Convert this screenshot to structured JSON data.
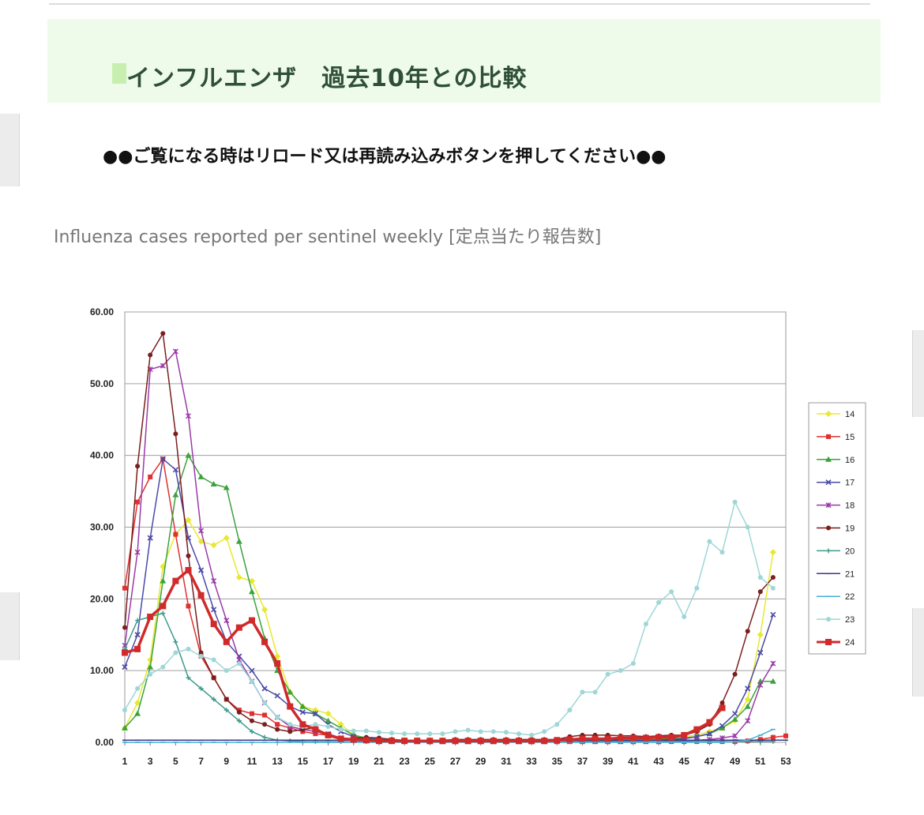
{
  "section": {
    "title": "インフルエンザ　過去10年との比較"
  },
  "notice": "●●ご覧になる時はリロード又は再読み込みボタンを押してください●●",
  "chart_caption": "Influenza cases reported per sentinel weekly [定点当たり報告数]",
  "chart_data": {
    "type": "line",
    "title": "",
    "xlabel": "",
    "ylabel": "",
    "ylim": [
      0,
      60
    ],
    "yticks": [
      "0.00",
      "10.00",
      "20.00",
      "30.00",
      "40.00",
      "50.00",
      "60.00"
    ],
    "xlim": [
      1,
      53
    ],
    "xticks": [
      1,
      3,
      5,
      7,
      9,
      11,
      13,
      15,
      17,
      19,
      21,
      23,
      25,
      27,
      29,
      31,
      33,
      35,
      37,
      39,
      41,
      43,
      45,
      47,
      49,
      51,
      53
    ],
    "grid": "horizontal",
    "legend": "right",
    "series": [
      {
        "name": "14",
        "color": "#e8e832",
        "marker": "diamond",
        "x": [
          1,
          2,
          3,
          4,
          5,
          6,
          7,
          8,
          9,
          10,
          11,
          12,
          13,
          14,
          15,
          16,
          17,
          18,
          19,
          20,
          21,
          22,
          23,
          24,
          25,
          26,
          27,
          28,
          29,
          30,
          31,
          32,
          33,
          34,
          35,
          36,
          37,
          38,
          39,
          40,
          41,
          42,
          43,
          44,
          45,
          46,
          47,
          48,
          49,
          50,
          51,
          52
        ],
        "values": [
          2.0,
          5.5,
          11.5,
          24.5,
          29.0,
          31.0,
          28.0,
          27.5,
          28.5,
          23.0,
          22.5,
          18.5,
          12.0,
          7.0,
          5.0,
          4.5,
          4.0,
          2.5,
          1.0,
          0.6,
          0.5,
          0.4,
          0.3,
          0.3,
          0.3,
          0.3,
          0.3,
          0.3,
          0.3,
          0.3,
          0.3,
          0.3,
          0.3,
          0.3,
          0.3,
          0.3,
          0.3,
          0.3,
          0.3,
          0.3,
          0.4,
          0.4,
          0.5,
          0.6,
          0.8,
          1.0,
          1.5,
          2.0,
          3.0,
          6.0,
          15.0,
          26.5
        ]
      },
      {
        "name": "15",
        "color": "#e03030",
        "marker": "square",
        "x": [
          1,
          2,
          3,
          4,
          5,
          6,
          7,
          8,
          9,
          10,
          11,
          12,
          13,
          14,
          15,
          16,
          17,
          18,
          19,
          20,
          21,
          22,
          23,
          24,
          25,
          26,
          27,
          28,
          29,
          30,
          31,
          32,
          33,
          34,
          35,
          36,
          37,
          38,
          39,
          40,
          41,
          42,
          43,
          44,
          45,
          46,
          47,
          48,
          49,
          50,
          51,
          52,
          53
        ],
        "values": [
          21.5,
          33.5,
          37.0,
          39.5,
          29.0,
          19.0,
          12.0,
          9.0,
          6.0,
          4.5,
          4.0,
          3.8,
          2.5,
          2.0,
          1.5,
          1.2,
          1.0,
          0.6,
          0.4,
          0.3,
          0.2,
          0.2,
          0.2,
          0.1,
          0.1,
          0.1,
          0.1,
          0.1,
          0.1,
          0.1,
          0.1,
          0.1,
          0.1,
          0.1,
          0.1,
          0.1,
          0.1,
          0.1,
          0.1,
          0.1,
          0.1,
          0.1,
          0.1,
          0.1,
          0.1,
          0.1,
          0.1,
          0.1,
          0.1,
          0.2,
          0.4,
          0.7,
          0.9
        ]
      },
      {
        "name": "16",
        "color": "#3ca23c",
        "marker": "triangle",
        "x": [
          1,
          2,
          3,
          4,
          5,
          6,
          7,
          8,
          9,
          10,
          11,
          12,
          13,
          14,
          15,
          16,
          17,
          18,
          19,
          20,
          21,
          22,
          23,
          24,
          25,
          26,
          27,
          28,
          29,
          30,
          31,
          32,
          33,
          34,
          35,
          36,
          37,
          38,
          39,
          40,
          41,
          42,
          43,
          44,
          45,
          46,
          47,
          48,
          49,
          50,
          51,
          52
        ],
        "values": [
          2.0,
          4.0,
          10.5,
          22.5,
          34.5,
          40.0,
          37.0,
          36.0,
          35.5,
          28.0,
          21.0,
          14.5,
          10.0,
          7.0,
          5.0,
          4.0,
          3.0,
          2.0,
          1.0,
          0.6,
          0.4,
          0.3,
          0.3,
          0.3,
          0.2,
          0.2,
          0.2,
          0.2,
          0.2,
          0.2,
          0.2,
          0.2,
          0.2,
          0.2,
          0.2,
          0.2,
          0.2,
          0.2,
          0.2,
          0.2,
          0.3,
          0.3,
          0.4,
          0.5,
          0.6,
          0.8,
          1.2,
          2.0,
          3.2,
          5.0,
          8.5,
          8.5
        ]
      },
      {
        "name": "17",
        "color": "#4a4aa8",
        "marker": "x",
        "x": [
          1,
          2,
          3,
          4,
          5,
          6,
          7,
          8,
          9,
          10,
          11,
          12,
          13,
          14,
          15,
          16,
          17,
          18,
          19,
          20,
          21,
          22,
          23,
          24,
          25,
          26,
          27,
          28,
          29,
          30,
          31,
          32,
          33,
          34,
          35,
          36,
          37,
          38,
          39,
          40,
          41,
          42,
          43,
          44,
          45,
          46,
          47,
          48,
          49,
          50,
          51,
          52
        ],
        "values": [
          10.5,
          15.0,
          28.5,
          39.5,
          38.0,
          28.5,
          24.0,
          18.5,
          14.0,
          12.0,
          10.0,
          7.5,
          6.5,
          5.0,
          4.2,
          4.0,
          2.5,
          1.5,
          0.8,
          0.5,
          0.4,
          0.3,
          0.3,
          0.3,
          0.2,
          0.2,
          0.2,
          0.2,
          0.2,
          0.2,
          0.2,
          0.2,
          0.2,
          0.2,
          0.2,
          0.2,
          0.2,
          0.2,
          0.2,
          0.2,
          0.2,
          0.3,
          0.3,
          0.4,
          0.5,
          0.8,
          1.2,
          2.3,
          4.0,
          7.5,
          12.5,
          17.8
        ]
      },
      {
        "name": "18",
        "color": "#9a3aa8",
        "marker": "star",
        "x": [
          1,
          2,
          3,
          4,
          5,
          6,
          7,
          8,
          9,
          10,
          11,
          12,
          13,
          14,
          15,
          16,
          17,
          18,
          19,
          20,
          21,
          22,
          23,
          24,
          25,
          26,
          27,
          28,
          29,
          30,
          31,
          32,
          33,
          34,
          35,
          36,
          37,
          38,
          39,
          40,
          41,
          42,
          43,
          44,
          45,
          46,
          47,
          48,
          49,
          50,
          51,
          52
        ],
        "values": [
          13.5,
          26.5,
          52.0,
          52.5,
          54.5,
          45.5,
          29.5,
          22.5,
          17.0,
          11.5,
          8.5,
          5.5,
          3.5,
          2.2,
          1.8,
          1.5,
          1.2,
          0.6,
          0.4,
          0.3,
          0.2,
          0.2,
          0.2,
          0.1,
          0.1,
          0.1,
          0.1,
          0.1,
          0.1,
          0.1,
          0.1,
          0.1,
          0.1,
          0.1,
          0.1,
          0.1,
          0.1,
          0.1,
          0.1,
          0.1,
          0.1,
          0.1,
          0.1,
          0.2,
          0.2,
          0.3,
          0.4,
          0.6,
          0.9,
          3.0,
          8.0,
          11.0
        ]
      },
      {
        "name": "19",
        "color": "#7a1e1e",
        "marker": "circle",
        "x": [
          1,
          2,
          3,
          4,
          5,
          6,
          7,
          8,
          9,
          10,
          11,
          12,
          13,
          14,
          15,
          16,
          17,
          18,
          19,
          20,
          21,
          22,
          23,
          24,
          25,
          26,
          27,
          28,
          29,
          30,
          31,
          32,
          33,
          34,
          35,
          36,
          37,
          38,
          39,
          40,
          41,
          42,
          43,
          44,
          45,
          46,
          47,
          48,
          49,
          50,
          51,
          52
        ],
        "values": [
          16.0,
          38.5,
          54.0,
          57.0,
          43.0,
          26.0,
          12.5,
          9.0,
          6.0,
          4.2,
          3.0,
          2.5,
          1.8,
          1.5,
          1.8,
          2.0,
          1.0,
          0.6,
          0.5,
          0.7,
          0.6,
          0.4,
          0.3,
          0.3,
          0.3,
          0.3,
          0.4,
          0.4,
          0.4,
          0.4,
          0.4,
          0.4,
          0.4,
          0.4,
          0.4,
          0.8,
          1.0,
          1.0,
          1.0,
          0.9,
          0.9,
          0.8,
          0.9,
          1.0,
          1.0,
          1.5,
          2.5,
          5.5,
          9.5,
          15.5,
          21.0,
          23.0
        ]
      },
      {
        "name": "20",
        "color": "#3e9a8a",
        "marker": "plus",
        "x": [
          1,
          2,
          3,
          4,
          5,
          6,
          7,
          8,
          9,
          10,
          11,
          12,
          13,
          14,
          15,
          16,
          17,
          18,
          19,
          20,
          21,
          22,
          23,
          24,
          25,
          26,
          27,
          28,
          29,
          30,
          31,
          32,
          33,
          34,
          35,
          36,
          37,
          38,
          39,
          40,
          41,
          42,
          43,
          44,
          45,
          46,
          47,
          48,
          49,
          50,
          51,
          52
        ],
        "values": [
          13.0,
          17.0,
          17.5,
          18.0,
          14.0,
          9.0,
          7.5,
          6.0,
          4.5,
          3.0,
          1.5,
          0.7,
          0.3,
          0.2,
          0.1,
          0.1,
          0.1,
          0.1,
          0.1,
          0.1,
          0.1,
          0.1,
          0.1,
          0.1,
          0.1,
          0.1,
          0.1,
          0.1,
          0.1,
          0.1,
          0.1,
          0.1,
          0.1,
          0.1,
          0.1,
          0.1,
          0.1,
          0.1,
          0.1,
          0.1,
          0.1,
          0.1,
          0.1,
          0.1,
          0.1,
          0.1,
          0.1,
          0.1,
          0.1,
          0.1,
          0.1,
          0.1
        ]
      },
      {
        "name": "21",
        "color": "#3a3a8a",
        "marker": "dash",
        "x": [
          1,
          2,
          3,
          4,
          5,
          6,
          7,
          8,
          9,
          10,
          11,
          12,
          13,
          14,
          15,
          16,
          17,
          18,
          19,
          20,
          21,
          22,
          23,
          24,
          25,
          26,
          27,
          28,
          29,
          30,
          31,
          32,
          33,
          34,
          35,
          36,
          37,
          38,
          39,
          40,
          41,
          42,
          43,
          44,
          45,
          46,
          47,
          48,
          49,
          50,
          51,
          52,
          53
        ],
        "values": [
          0.3,
          0.3,
          0.3,
          0.3,
          0.3,
          0.3,
          0.3,
          0.3,
          0.3,
          0.3,
          0.3,
          0.3,
          0.3,
          0.3,
          0.3,
          0.3,
          0.3,
          0.3,
          0.3,
          0.3,
          0.3,
          0.3,
          0.3,
          0.3,
          0.3,
          0.3,
          0.3,
          0.3,
          0.3,
          0.3,
          0.3,
          0.3,
          0.3,
          0.3,
          0.3,
          0.3,
          0.3,
          0.3,
          0.3,
          0.3,
          0.3,
          0.3,
          0.3,
          0.3,
          0.3,
          0.3,
          0.3,
          0.3,
          0.3,
          0.3,
          0.3,
          0.3,
          0.3
        ]
      },
      {
        "name": "22",
        "color": "#48b0d8",
        "marker": "dash",
        "x": [
          1,
          2,
          3,
          4,
          5,
          6,
          7,
          8,
          9,
          10,
          11,
          12,
          13,
          14,
          15,
          16,
          17,
          18,
          19,
          20,
          21,
          22,
          23,
          24,
          25,
          26,
          27,
          28,
          29,
          30,
          31,
          32,
          33,
          34,
          35,
          36,
          37,
          38,
          39,
          40,
          41,
          42,
          43,
          44,
          45,
          46,
          47,
          48,
          49,
          50,
          51,
          52
        ],
        "values": [
          0.0,
          0.0,
          0.0,
          0.0,
          0.0,
          0.0,
          0.0,
          0.0,
          0.0,
          0.0,
          0.0,
          0.0,
          0.0,
          0.0,
          0.0,
          0.0,
          0.0,
          0.0,
          0.0,
          0.0,
          0.0,
          0.0,
          0.0,
          0.0,
          0.0,
          0.0,
          0.0,
          0.0,
          0.0,
          0.0,
          0.0,
          0.0,
          0.0,
          0.0,
          0.0,
          0.0,
          0.0,
          0.0,
          0.0,
          0.0,
          0.0,
          0.0,
          0.0,
          0.0,
          0.0,
          0.0,
          0.0,
          0.0,
          0.1,
          0.3,
          1.0,
          1.8
        ]
      },
      {
        "name": "23",
        "color": "#9fd6d6",
        "marker": "circle",
        "x": [
          1,
          2,
          3,
          4,
          5,
          6,
          7,
          8,
          9,
          10,
          11,
          12,
          13,
          14,
          15,
          16,
          17,
          18,
          19,
          20,
          21,
          22,
          23,
          24,
          25,
          26,
          27,
          28,
          29,
          30,
          31,
          32,
          33,
          34,
          35,
          36,
          37,
          38,
          39,
          40,
          41,
          42,
          43,
          44,
          45,
          46,
          47,
          48,
          49,
          50,
          51,
          52
        ],
        "values": [
          4.5,
          7.5,
          9.5,
          10.5,
          12.5,
          13.0,
          12.0,
          11.5,
          10.0,
          11.0,
          8.5,
          5.5,
          3.5,
          2.5,
          2.2,
          2.5,
          2.2,
          1.8,
          1.6,
          1.6,
          1.4,
          1.3,
          1.2,
          1.2,
          1.2,
          1.2,
          1.5,
          1.7,
          1.5,
          1.5,
          1.4,
          1.2,
          1.0,
          1.5,
          2.5,
          4.5,
          7.0,
          7.0,
          9.5,
          10.0,
          11.0,
          16.5,
          19.5,
          21.0,
          17.5,
          21.5,
          28.0,
          26.5,
          33.5,
          30.0,
          23.0,
          21.5
        ]
      },
      {
        "name": "24",
        "color": "#d02a2a",
        "marker": "square",
        "x": [
          1,
          2,
          3,
          4,
          5,
          6,
          7,
          8,
          9,
          10,
          11,
          12,
          13,
          14,
          15,
          16,
          17,
          18,
          19,
          20,
          21,
          22,
          23,
          24,
          25,
          26,
          27,
          28,
          29,
          30,
          31,
          32,
          33,
          34,
          35,
          36,
          37,
          38,
          39,
          40,
          41,
          42,
          43,
          44,
          45,
          46,
          47,
          48
        ],
        "values": [
          12.5,
          13.0,
          17.5,
          19.0,
          22.5,
          24.0,
          20.5,
          16.5,
          14.0,
          16.0,
          17.0,
          14.0,
          11.0,
          5.0,
          2.5,
          1.8,
          1.0,
          0.5,
          0.4,
          0.3,
          0.2,
          0.2,
          0.2,
          0.2,
          0.2,
          0.2,
          0.2,
          0.2,
          0.2,
          0.2,
          0.2,
          0.2,
          0.2,
          0.2,
          0.3,
          0.4,
          0.5,
          0.5,
          0.5,
          0.6,
          0.6,
          0.6,
          0.7,
          0.7,
          1.0,
          1.8,
          2.8,
          4.8
        ]
      }
    ]
  }
}
